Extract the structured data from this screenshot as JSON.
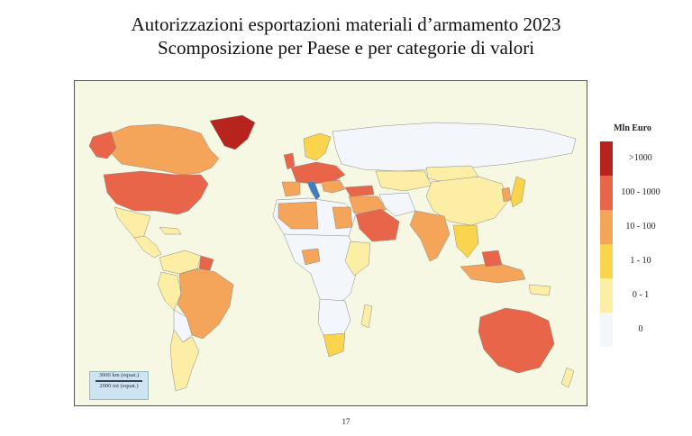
{
  "title_line1": "Autorizzazioni esportazioni materiali d’armamento 2023",
  "title_line2": "Scomposizione per Paese e per categorie di valori",
  "legend": {
    "title": "Mln Euro",
    "classes": [
      {
        "label": ">1000",
        "color": "#b8231d"
      },
      {
        "label": "100 - 1000",
        "color": "#e8654a"
      },
      {
        "label": "10 - 100",
        "color": "#f4a55a"
      },
      {
        "label": "1 - 10",
        "color": "#fbd44e"
      },
      {
        "label": "0 - 1",
        "color": "#fdeea5"
      },
      {
        "label": "0",
        "color": "#f3f6fa"
      }
    ]
  },
  "scale": {
    "km": "3000 km (equat.)",
    "mi": "2000 mi (equat.)"
  },
  "page_number": "17",
  "colors": {
    "ocean": "#f6f8e4",
    "border": "#888888",
    "italy": "#3f7fbf"
  }
}
